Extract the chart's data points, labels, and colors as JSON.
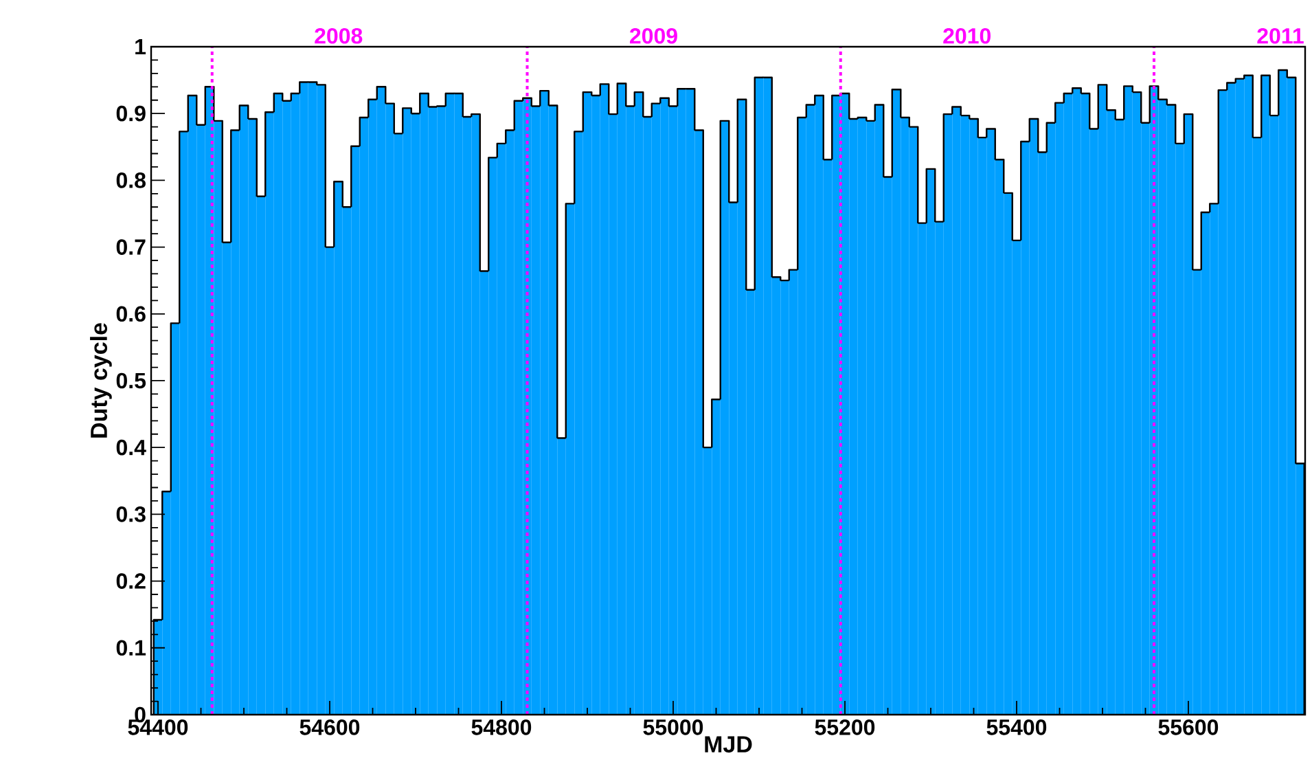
{
  "chart_data": {
    "type": "histogram",
    "xlabel": "MJD",
    "ylabel": "Duty cycle",
    "color": "#00a0ff",
    "bins": [
      54395,
      54405,
      54415,
      54425,
      54435,
      54445,
      54455,
      54465,
      54475,
      54485,
      54495,
      54505,
      54515,
      54525,
      54535,
      54545,
      54555,
      54565,
      54575,
      54585,
      54595,
      54605,
      54615,
      54625,
      54635,
      54645,
      54655,
      54665,
      54675,
      54685,
      54695,
      54705,
      54715,
      54725,
      54735,
      54745,
      54755,
      54765,
      54775,
      54785,
      54795,
      54805,
      54815,
      54825,
      54835,
      54845,
      54855,
      54865,
      54875,
      54885,
      54895,
      54905,
      54915,
      54925,
      54935,
      54945,
      54955,
      54965,
      54975,
      54985,
      54995,
      55005,
      55015,
      55025,
      55035,
      55045,
      55055,
      55065,
      55075,
      55085,
      55095,
      55105,
      55115,
      55125,
      55135,
      55145,
      55155,
      55165,
      55175,
      55185,
      55195,
      55205,
      55215,
      55225,
      55235,
      55245,
      55255,
      55265,
      55275,
      55285,
      55295,
      55305,
      55315,
      55325,
      55335,
      55345,
      55355,
      55365,
      55375,
      55385,
      55395,
      55405,
      55415,
      55425,
      55435,
      55445,
      55455,
      55465,
      55475,
      55485,
      55495,
      55505,
      55515,
      55525,
      55535,
      55545,
      55555,
      55565,
      55575,
      55585,
      55595,
      55605,
      55615,
      55625,
      55635,
      55645,
      55655,
      55665,
      55675,
      55685,
      55695,
      55705,
      55715,
      55725,
      55735
    ],
    "values": [
      0.142,
      0.334,
      0.586,
      0.873,
      0.927,
      0.883,
      0.94,
      0.889,
      0.707,
      0.875,
      0.912,
      0.892,
      0.776,
      0.902,
      0.93,
      0.919,
      0.93,
      0.947,
      0.947,
      0.943,
      0.7,
      0.798,
      0.76,
      0.851,
      0.894,
      0.921,
      0.94,
      0.915,
      0.87,
      0.908,
      0.9,
      0.93,
      0.91,
      0.911,
      0.93,
      0.93,
      0.895,
      0.899,
      0.664,
      0.834,
      0.855,
      0.875,
      0.919,
      0.923,
      0.911,
      0.934,
      0.912,
      0.414,
      0.765,
      0.873,
      0.932,
      0.927,
      0.944,
      0.899,
      0.945,
      0.911,
      0.932,
      0.895,
      0.915,
      0.923,
      0.911,
      0.937,
      0.937,
      0.875,
      0.4,
      0.472,
      0.889,
      0.767,
      0.921,
      0.636,
      0.954,
      0.954,
      0.655,
      0.65,
      0.666,
      0.894,
      0.913,
      0.927,
      0.831,
      0.927,
      0.93,
      0.892,
      0.894,
      0.889,
      0.913,
      0.805,
      0.936,
      0.894,
      0.88,
      0.736,
      0.817,
      0.738,
      0.899,
      0.91,
      0.897,
      0.892,
      0.864,
      0.877,
      0.831,
      0.781,
      0.71,
      0.858,
      0.892,
      0.842,
      0.886,
      0.916,
      0.93,
      0.938,
      0.93,
      0.877,
      0.943,
      0.905,
      0.891,
      0.941,
      0.932,
      0.886,
      0.941,
      0.921,
      0.913,
      0.855,
      0.899,
      0.666,
      0.752,
      0.765,
      0.935,
      0.946,
      0.952,
      0.957,
      0.864,
      0.957,
      0.897,
      0.965,
      0.954,
      0.376
    ],
    "xlim": [
      54392,
      55736
    ],
    "ylim": [
      0,
      1
    ],
    "xticks": [
      54400,
      54600,
      54800,
      55000,
      55200,
      55400,
      55600
    ],
    "yticks": [
      0,
      0.1,
      0.2,
      0.3,
      0.4,
      0.5,
      0.6,
      0.7,
      0.8,
      0.9,
      1
    ],
    "annotations": [
      "2008",
      "2009",
      "2010",
      "2011"
    ],
    "ref_lines": [
      {
        "axis": "x",
        "value": 54463,
        "color": "#ff00ff",
        "line_style": "dotted"
      },
      {
        "axis": "x",
        "value": 54830,
        "color": "#ff00ff",
        "line_style": "dotted"
      },
      {
        "axis": "x",
        "value": 55195,
        "color": "#ff00ff",
        "line_style": "dotted"
      },
      {
        "axis": "x",
        "value": 55560,
        "color": "#ff00ff",
        "line_style": "dotted"
      }
    ]
  }
}
